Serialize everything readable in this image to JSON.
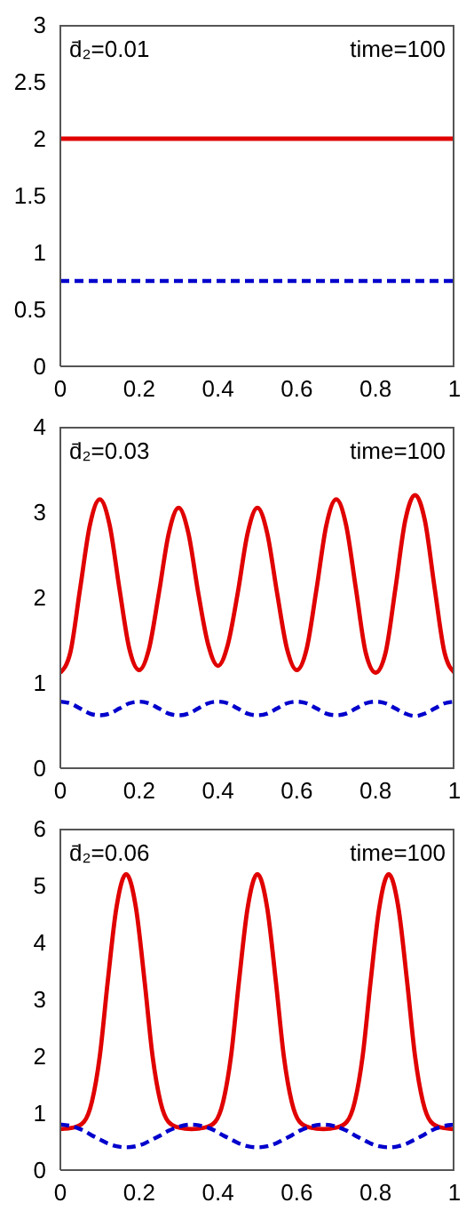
{
  "chart_data": [
    {
      "type": "line",
      "annotations": [
        "d̄₂=0.01",
        "time=100"
      ],
      "x": [
        0,
        1
      ],
      "xlim": [
        0,
        1
      ],
      "xticks": [
        0,
        0.2,
        0.4,
        0.6,
        0.8,
        1
      ],
      "ylim": [
        0,
        3
      ],
      "yticks": [
        0,
        0.5,
        1,
        1.5,
        2,
        2.5,
        3
      ],
      "series": [
        {
          "color": "#e00000",
          "values": [
            2,
            2
          ],
          "line_style": "solid"
        },
        {
          "color": "#0000cc",
          "values": [
            0.75,
            0.75
          ],
          "line_style": "dashed"
        }
      ]
    },
    {
      "type": "line",
      "annotations": [
        "d̄₂=0.03",
        "time=100"
      ],
      "x": [
        0,
        0.025,
        0.05,
        0.075,
        0.1,
        0.125,
        0.15,
        0.175,
        0.2,
        0.225,
        0.25,
        0.275,
        0.3,
        0.325,
        0.35,
        0.375,
        0.4,
        0.425,
        0.45,
        0.475,
        0.5,
        0.525,
        0.55,
        0.575,
        0.6,
        0.625,
        0.65,
        0.675,
        0.7,
        0.725,
        0.75,
        0.775,
        0.8,
        0.825,
        0.85,
        0.875,
        0.9,
        0.925,
        0.95,
        0.975,
        1
      ],
      "xlim": [
        0,
        1
      ],
      "xticks": [
        0,
        0.2,
        0.4,
        0.6,
        0.8,
        1
      ],
      "ylim": [
        0,
        4
      ],
      "yticks": [
        0,
        1,
        2,
        3,
        4
      ],
      "series": [
        {
          "color": "#e00000",
          "values": [
            1.12,
            1.35,
            2.1,
            2.85,
            3.15,
            2.85,
            2.1,
            1.4,
            1.15,
            1.4,
            2.05,
            2.75,
            3.05,
            2.75,
            2.05,
            1.45,
            1.2,
            1.45,
            2.05,
            2.75,
            3.05,
            2.75,
            2.05,
            1.4,
            1.15,
            1.4,
            2.1,
            2.85,
            3.15,
            2.85,
            2.1,
            1.35,
            1.12,
            1.35,
            2.1,
            2.9,
            3.2,
            2.9,
            2.1,
            1.35,
            1.12
          ],
          "line_style": "solid"
        },
        {
          "color": "#0000cc",
          "values": [
            0.78,
            0.76,
            0.7,
            0.64,
            0.62,
            0.64,
            0.7,
            0.76,
            0.78,
            0.76,
            0.7,
            0.64,
            0.62,
            0.64,
            0.7,
            0.76,
            0.78,
            0.76,
            0.7,
            0.64,
            0.62,
            0.64,
            0.7,
            0.76,
            0.78,
            0.76,
            0.7,
            0.64,
            0.62,
            0.64,
            0.7,
            0.76,
            0.78,
            0.76,
            0.7,
            0.64,
            0.61,
            0.64,
            0.7,
            0.76,
            0.78
          ],
          "line_style": "dashed"
        }
      ]
    },
    {
      "type": "line",
      "annotations": [
        "d̄₂=0.06",
        "time=100"
      ],
      "x": [
        0,
        0.035,
        0.06,
        0.08,
        0.1,
        0.12,
        0.142,
        0.167,
        0.192,
        0.214,
        0.234,
        0.254,
        0.274,
        0.299,
        0.333,
        0.368,
        0.393,
        0.413,
        0.433,
        0.453,
        0.475,
        0.5,
        0.525,
        0.547,
        0.567,
        0.587,
        0.607,
        0.632,
        0.667,
        0.702,
        0.727,
        0.747,
        0.767,
        0.787,
        0.809,
        0.833,
        0.858,
        0.88,
        0.9,
        0.92,
        0.94,
        0.965,
        1
      ],
      "xlim": [
        0,
        1
      ],
      "xticks": [
        0,
        0.2,
        0.4,
        0.6,
        0.8,
        1
      ],
      "ylim": [
        0,
        6
      ],
      "yticks": [
        0,
        1,
        2,
        3,
        4,
        5,
        6
      ],
      "series": [
        {
          "color": "#e00000",
          "values": [
            0.72,
            0.75,
            0.85,
            1.2,
            2.0,
            3.3,
            4.6,
            5.2,
            4.6,
            3.3,
            2.0,
            1.2,
            0.85,
            0.75,
            0.72,
            0.75,
            0.85,
            1.2,
            2.0,
            3.3,
            4.6,
            5.2,
            4.6,
            3.3,
            2.0,
            1.2,
            0.85,
            0.75,
            0.72,
            0.75,
            0.85,
            1.2,
            2.0,
            3.3,
            4.6,
            5.2,
            4.6,
            3.3,
            2.0,
            1.2,
            0.85,
            0.75,
            0.72
          ],
          "line_style": "solid"
        },
        {
          "color": "#0000cc",
          "values": [
            0.8,
            0.76,
            0.69,
            0.61,
            0.54,
            0.47,
            0.42,
            0.4,
            0.42,
            0.47,
            0.54,
            0.61,
            0.69,
            0.76,
            0.8,
            0.76,
            0.69,
            0.61,
            0.54,
            0.47,
            0.42,
            0.4,
            0.42,
            0.47,
            0.54,
            0.61,
            0.69,
            0.76,
            0.8,
            0.76,
            0.69,
            0.61,
            0.54,
            0.47,
            0.42,
            0.4,
            0.42,
            0.47,
            0.54,
            0.61,
            0.69,
            0.76,
            0.8
          ],
          "line_style": "dashed"
        }
      ]
    }
  ]
}
